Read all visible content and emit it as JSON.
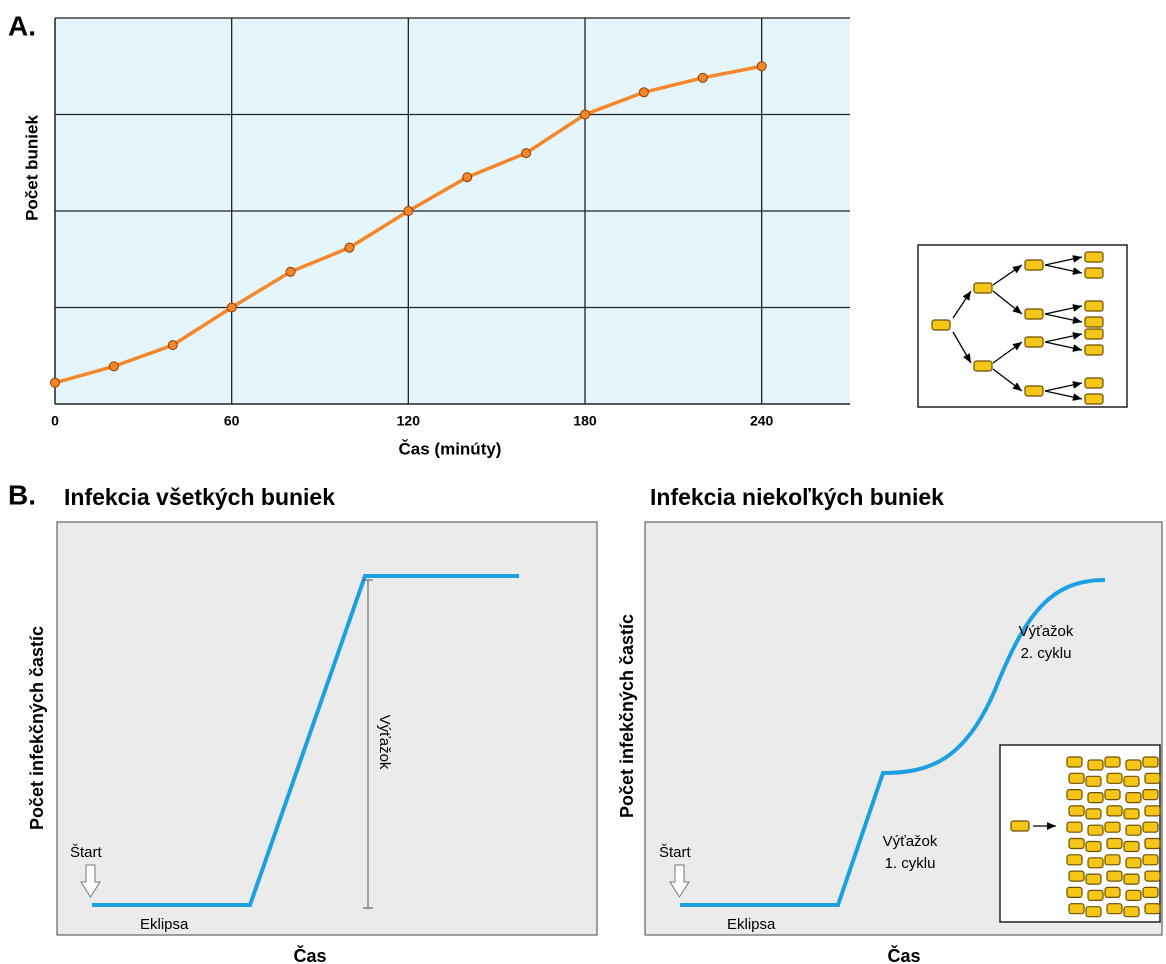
{
  "chart_data": [
    {
      "type": "line",
      "panel_label": "A.",
      "x_label": "Čas (minúty)",
      "y_label": "Počet buniek",
      "x": [
        0,
        20,
        40,
        60,
        80,
        100,
        120,
        140,
        160,
        180,
        200,
        220,
        240
      ],
      "series": [
        {
          "color": "#f5862a",
          "values": [
            0.22,
            0.39,
            0.61,
            1.0,
            1.37,
            1.62,
            2.0,
            2.35,
            2.6,
            3.0,
            3.23,
            3.38,
            3.5
          ]
        }
      ],
      "xlim": [
        0,
        270
      ],
      "xticks": [
        0,
        60,
        120,
        180,
        240
      ],
      "ylim": [
        0,
        4
      ],
      "yticks": [
        1,
        2,
        3,
        4
      ],
      "grid": true,
      "background": "#e4f6fb"
    },
    {
      "type": "schematic",
      "panel_label": "B.",
      "title": "Infekcia všetkých buniek",
      "x_label": "Čas",
      "y_label": "Počet infekčných častíc",
      "annotations": [
        "Štart",
        "Eklipsa",
        "Výťažok"
      ],
      "color": "#1ba1e2"
    },
    {
      "type": "schematic",
      "title": "Infekcia niekoľkých buniek",
      "x_label": "Čas",
      "y_label": "Počet infekčných častíc",
      "annotations": [
        "Štart",
        "Eklipsa",
        "Výťažok",
        "2. cyklu",
        "Výťažok",
        "1. cyklu"
      ],
      "color": "#1ba1e2"
    }
  ]
}
